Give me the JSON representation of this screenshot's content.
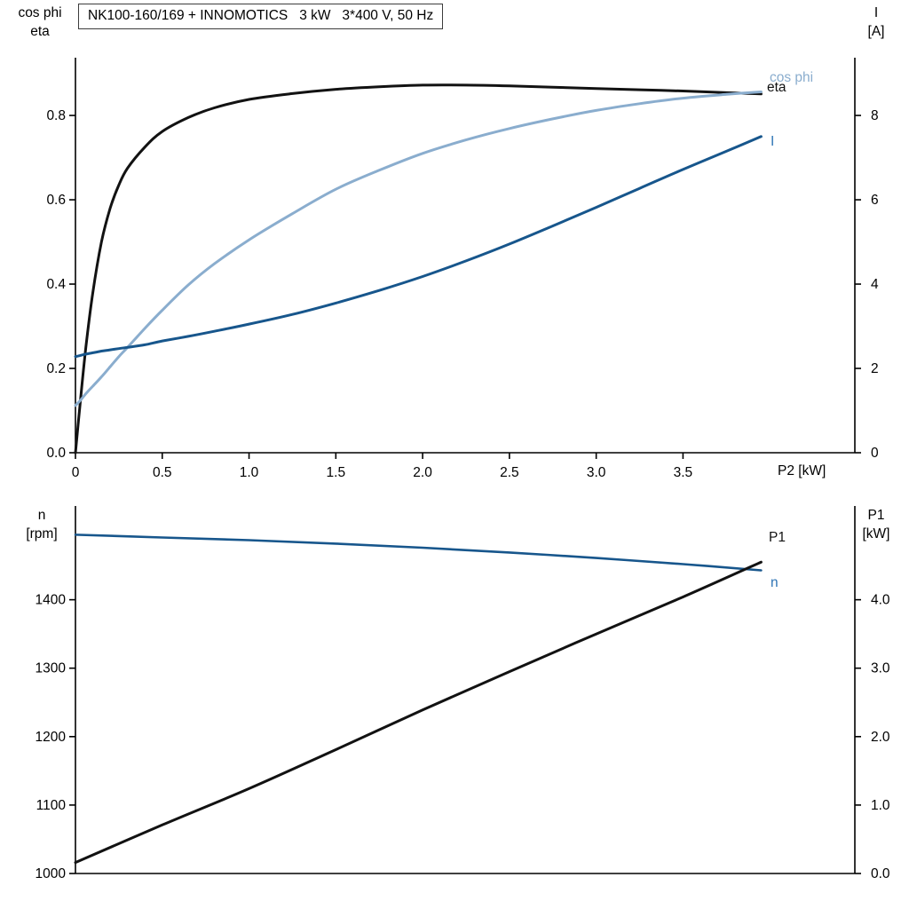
{
  "title": "NK100-160/169 + INNOMOTICS   3 kW   3*400 V, 50 Hz",
  "colors": {
    "curve_black": "#121212",
    "curve_dark_blue": "#17568c",
    "curve_light_blue": "#8aadce",
    "label_blue": "#2e74b5",
    "axis": "#000000",
    "background": "#ffffff"
  },
  "chart_data": [
    {
      "id": "top",
      "type": "line",
      "x_label": "P2 [kW]",
      "left_axis_title": [
        "cos phi",
        "eta"
      ],
      "right_axis_title": [
        "I",
        "[A]"
      ],
      "xlim": [
        0,
        4.49
      ],
      "left_ylim": [
        0,
        0.937
      ],
      "right_ylim": [
        0,
        9.37
      ],
      "grid": false,
      "legend_position": "right-of-curves",
      "x_tick_values": [
        0,
        0.5,
        1,
        1.5,
        2,
        2.5,
        3,
        3.5
      ],
      "x_tick_labels": [
        "0",
        "0.5",
        "1.0",
        "1.5",
        "2.0",
        "2.5",
        "3.0",
        "3.5"
      ],
      "left_tick_values": [
        0,
        0.2,
        0.4,
        0.6,
        0.8
      ],
      "left_tick_labels": [
        "0.0",
        "0.2",
        "0.4",
        "0.6",
        "0.8"
      ],
      "right_tick_values": [
        0,
        2,
        4,
        6,
        8
      ],
      "right_tick_labels": [
        "0",
        "2",
        "4",
        "6",
        "8"
      ],
      "series": [
        {
          "name": "eta",
          "axis": "left",
          "color": "curve_black",
          "width": 3,
          "x": [
            0,
            0.03,
            0.06,
            0.1,
            0.15,
            0.2,
            0.25,
            0.3,
            0.4,
            0.5,
            0.65,
            0.8,
            1.0,
            1.25,
            1.5,
            1.75,
            2.0,
            2.25,
            2.5,
            2.75,
            3.0,
            3.25,
            3.5,
            3.75,
            3.95
          ],
          "y": [
            0,
            0.13,
            0.25,
            0.38,
            0.5,
            0.58,
            0.635,
            0.675,
            0.725,
            0.762,
            0.795,
            0.818,
            0.838,
            0.852,
            0.862,
            0.868,
            0.872,
            0.872,
            0.87,
            0.867,
            0.864,
            0.861,
            0.858,
            0.854,
            0.851
          ]
        },
        {
          "name": "cos phi",
          "axis": "left",
          "color": "curve_light_blue",
          "width": 3,
          "x": [
            0,
            0.03,
            0.06,
            0.1,
            0.15,
            0.2,
            0.25,
            0.3,
            0.4,
            0.5,
            0.65,
            0.8,
            1.0,
            1.25,
            1.5,
            1.75,
            2.0,
            2.25,
            2.5,
            2.75,
            3.0,
            3.25,
            3.5,
            3.75,
            3.95
          ],
          "y": [
            0.112,
            0.125,
            0.14,
            0.158,
            0.18,
            0.204,
            0.228,
            0.25,
            0.295,
            0.338,
            0.398,
            0.448,
            0.505,
            0.567,
            0.625,
            0.67,
            0.71,
            0.742,
            0.769,
            0.792,
            0.812,
            0.828,
            0.841,
            0.85,
            0.856
          ]
        },
        {
          "name": "I",
          "axis": "right",
          "color": "curve_dark_blue",
          "width": 3,
          "x": [
            0,
            0.03,
            0.06,
            0.1,
            0.15,
            0.2,
            0.25,
            0.3,
            0.4,
            0.5,
            0.65,
            0.8,
            1.0,
            1.25,
            1.5,
            1.75,
            2.0,
            2.25,
            2.5,
            2.75,
            3.0,
            3.25,
            3.5,
            3.75,
            3.95
          ],
          "y": [
            2.28,
            2.31,
            2.34,
            2.37,
            2.41,
            2.44,
            2.47,
            2.5,
            2.56,
            2.65,
            2.76,
            2.88,
            3.05,
            3.28,
            3.55,
            3.85,
            4.18,
            4.55,
            4.95,
            5.38,
            5.82,
            6.27,
            6.72,
            7.15,
            7.5
          ]
        }
      ]
    },
    {
      "id": "bottom",
      "type": "line",
      "x_label": "",
      "left_axis_title": [
        "n",
        "[rpm]"
      ],
      "right_axis_title": [
        "P1",
        "[kW]"
      ],
      "xlim": [
        0,
        4.49
      ],
      "left_ylim": [
        1000,
        1537
      ],
      "right_ylim": [
        0,
        5.37
      ],
      "grid": false,
      "legend_position": "right-of-curves",
      "x_tick_values": [],
      "x_tick_labels": [],
      "left_tick_values": [
        1000,
        1100,
        1200,
        1300,
        1400
      ],
      "left_tick_labels": [
        "1000",
        "1100",
        "1200",
        "1300",
        "1400"
      ],
      "right_tick_values": [
        0,
        1,
        2,
        3,
        4
      ],
      "right_tick_labels": [
        "0.0",
        "1.0",
        "2.0",
        "3.0",
        "4.0"
      ],
      "series": [
        {
          "name": "n",
          "axis": "left",
          "color": "curve_dark_blue",
          "width": 2.6,
          "x": [
            0,
            0.5,
            1.0,
            1.5,
            2.0,
            2.5,
            3.0,
            3.5,
            3.95
          ],
          "y": [
            1495,
            1491,
            1487,
            1482,
            1476,
            1469,
            1461,
            1452,
            1443
          ]
        },
        {
          "name": "P1",
          "axis": "right",
          "color": "curve_black",
          "width": 3,
          "x": [
            0,
            0.5,
            1.0,
            1.5,
            2.0,
            2.5,
            3.0,
            3.5,
            3.95
          ],
          "y": [
            0.16,
            0.71,
            1.24,
            1.81,
            2.39,
            2.95,
            3.5,
            4.04,
            4.55
          ]
        }
      ]
    }
  ]
}
